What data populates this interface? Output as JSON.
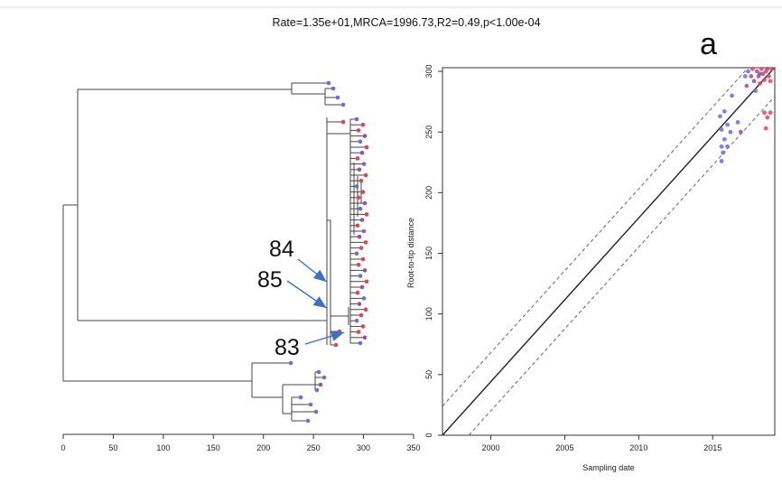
{
  "title": "Rate=1.35e+01,MRCA=1996.73,R2=0.49,p<1.00e-04",
  "panel_label": "a",
  "colors": {
    "blue": "#6b6be8",
    "red": "#e0445a",
    "purple": "#9b4f9e",
    "fit_line": "#222222",
    "arrow": "#3f6fc4",
    "branch": "#444444"
  },
  "chart_data": [
    {
      "type": "tree",
      "xlim": [
        0,
        350
      ],
      "x_ticks": [
        "0",
        "50",
        "100",
        "150",
        "200",
        "250",
        "300",
        "350"
      ],
      "callouts": [
        {
          "label": "84",
          "node_x": 263
        },
        {
          "label": "85",
          "node_x": 263
        },
        {
          "label": "83",
          "node_x": 268
        }
      ]
    },
    {
      "type": "scatter",
      "xlabel": "Sampling date",
      "ylabel": "Root-to-tip distance",
      "xlim": [
        1996.73,
        2019.2
      ],
      "ylim": [
        0,
        303
      ],
      "x_ticks": [
        "2000",
        "2005",
        "2010",
        "2015"
      ],
      "y_ticks": [
        "0",
        "50",
        "100",
        "150",
        "200",
        "250",
        "300"
      ],
      "regression": {
        "rate": 13.5,
        "mrca": 1996.73
      },
      "confidence_offset": 24,
      "points": [
        {
          "x": 2015.6,
          "y": 226,
          "c": "blue"
        },
        {
          "x": 2015.7,
          "y": 233,
          "c": "blue"
        },
        {
          "x": 2015.6,
          "y": 238,
          "c": "blue"
        },
        {
          "x": 2016.0,
          "y": 238,
          "c": "blue"
        },
        {
          "x": 2015.8,
          "y": 244,
          "c": "blue"
        },
        {
          "x": 2016.2,
          "y": 250,
          "c": "blue"
        },
        {
          "x": 2015.6,
          "y": 252,
          "c": "blue"
        },
        {
          "x": 2016.0,
          "y": 256,
          "c": "blue"
        },
        {
          "x": 2015.5,
          "y": 263,
          "c": "blue"
        },
        {
          "x": 2015.8,
          "y": 267,
          "c": "blue"
        },
        {
          "x": 2016.9,
          "y": 250,
          "c": "purple"
        },
        {
          "x": 2016.7,
          "y": 258,
          "c": "blue"
        },
        {
          "x": 2016.3,
          "y": 280,
          "c": "blue"
        },
        {
          "x": 2017.3,
          "y": 288,
          "c": "purple"
        },
        {
          "x": 2017.4,
          "y": 300,
          "c": "blue"
        },
        {
          "x": 2017.6,
          "y": 296,
          "c": "purple"
        },
        {
          "x": 2017.8,
          "y": 292,
          "c": "purple"
        },
        {
          "x": 2017.9,
          "y": 284,
          "c": "blue"
        },
        {
          "x": 2018.0,
          "y": 300,
          "c": "purple"
        },
        {
          "x": 2018.1,
          "y": 296,
          "c": "purple"
        },
        {
          "x": 2018.2,
          "y": 290,
          "c": "red"
        },
        {
          "x": 2018.3,
          "y": 302,
          "c": "red"
        },
        {
          "x": 2018.4,
          "y": 298,
          "c": "purple"
        },
        {
          "x": 2018.5,
          "y": 293,
          "c": "red"
        },
        {
          "x": 2018.6,
          "y": 300,
          "c": "red"
        },
        {
          "x": 2018.7,
          "y": 302,
          "c": "purple"
        },
        {
          "x": 2018.8,
          "y": 296,
          "c": "red"
        },
        {
          "x": 2018.9,
          "y": 292,
          "c": "red"
        },
        {
          "x": 2019.0,
          "y": 302,
          "c": "red"
        },
        {
          "x": 2017.2,
          "y": 296,
          "c": "blue"
        },
        {
          "x": 2018.5,
          "y": 266,
          "c": "red"
        },
        {
          "x": 2018.7,
          "y": 262,
          "c": "red"
        },
        {
          "x": 2018.9,
          "y": 266,
          "c": "red"
        },
        {
          "x": 2018.6,
          "y": 253,
          "c": "red"
        },
        {
          "x": 2017.7,
          "y": 302,
          "c": "red"
        },
        {
          "x": 2018.2,
          "y": 298,
          "c": "purple"
        }
      ]
    }
  ]
}
